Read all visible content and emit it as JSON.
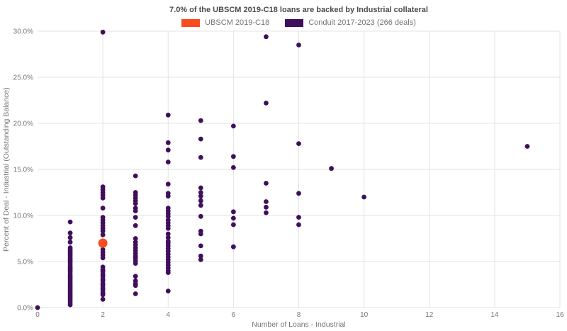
{
  "page": {
    "background": "#ffffff"
  },
  "chart_data": {
    "type": "scatter",
    "title": "7.0% of the UBSCM 2019-C18 loans are backed by Industrial collateral",
    "xlabel": "Number of Loans - Industrial",
    "ylabel": "Percent of Deal - Industrial (Outstanding Balance)",
    "xlim": [
      0,
      16
    ],
    "ylim": [
      0,
      30
    ],
    "x_ticks": [
      0,
      2,
      4,
      6,
      8,
      10,
      12,
      14,
      16
    ],
    "y_ticks": [
      0,
      5,
      10,
      15,
      20,
      25,
      30
    ],
    "y_tick_format": "one_decimal_percent",
    "grid": true,
    "legend_position": "top-center",
    "colors": {
      "grid": "#e3e3e3",
      "axis_text": "#757575",
      "title_text": "#4c4c4c",
      "background": "#ffffff"
    },
    "series": [
      {
        "name": "UBSCM 2019-C18",
        "color": "#f94c1f",
        "marker_radius": 6.5,
        "z": 2,
        "points": [
          [
            2,
            7.0
          ]
        ]
      },
      {
        "name": "Conduit 2017-2023 (266 deals)",
        "color": "#400f5c",
        "marker_radius": 3.4,
        "z": 1,
        "points": [
          [
            0,
            0.0
          ],
          [
            1,
            9.3
          ],
          [
            1,
            8.1
          ],
          [
            1,
            7.6
          ],
          [
            1,
            7.1
          ],
          [
            1,
            6.5
          ],
          [
            1,
            6.3
          ],
          [
            1,
            6.1
          ],
          [
            1,
            5.9
          ],
          [
            1,
            5.7
          ],
          [
            1,
            5.5
          ],
          [
            1,
            5.3
          ],
          [
            1,
            5.1
          ],
          [
            1,
            4.9
          ],
          [
            1,
            4.7
          ],
          [
            1,
            4.5
          ],
          [
            1,
            4.3
          ],
          [
            1,
            4.1
          ],
          [
            1,
            3.9
          ],
          [
            1,
            3.7
          ],
          [
            1,
            3.5
          ],
          [
            1,
            3.3
          ],
          [
            1,
            3.1
          ],
          [
            1,
            2.9
          ],
          [
            1,
            2.7
          ],
          [
            1,
            2.5
          ],
          [
            1,
            2.3
          ],
          [
            1,
            2.1
          ],
          [
            1,
            1.9
          ],
          [
            1,
            1.7
          ],
          [
            1,
            1.5
          ],
          [
            1,
            1.3
          ],
          [
            1,
            1.1
          ],
          [
            1,
            0.9
          ],
          [
            1,
            0.7
          ],
          [
            1,
            0.5
          ],
          [
            1,
            0.3
          ],
          [
            2,
            29.9
          ],
          [
            2,
            13.1
          ],
          [
            2,
            12.8
          ],
          [
            2,
            12.5
          ],
          [
            2,
            12.2
          ],
          [
            2,
            11.9
          ],
          [
            2,
            10.8
          ],
          [
            2,
            9.8
          ],
          [
            2,
            9.5
          ],
          [
            2,
            9.2
          ],
          [
            2,
            8.9
          ],
          [
            2,
            8.6
          ],
          [
            2,
            8.3
          ],
          [
            2,
            7.9
          ],
          [
            2,
            6.3
          ],
          [
            2,
            6.0
          ],
          [
            2,
            5.7
          ],
          [
            2,
            5.4
          ],
          [
            2,
            4.4
          ],
          [
            2,
            4.1
          ],
          [
            2,
            3.9
          ],
          [
            2,
            3.6
          ],
          [
            2,
            3.4
          ],
          [
            2,
            3.1
          ],
          [
            2,
            2.9
          ],
          [
            2,
            2.6
          ],
          [
            2,
            2.4
          ],
          [
            2,
            2.1
          ],
          [
            2,
            1.9
          ],
          [
            2,
            1.6
          ],
          [
            2,
            1.4
          ],
          [
            2,
            0.9
          ],
          [
            3,
            14.3
          ],
          [
            3,
            12.5
          ],
          [
            3,
            12.2
          ],
          [
            3,
            11.9
          ],
          [
            3,
            11.6
          ],
          [
            3,
            11.3
          ],
          [
            3,
            10.8
          ],
          [
            3,
            10.5
          ],
          [
            3,
            9.8
          ],
          [
            3,
            8.9
          ],
          [
            3,
            7.5
          ],
          [
            3,
            7.1
          ],
          [
            3,
            6.8
          ],
          [
            3,
            6.5
          ],
          [
            3,
            6.2
          ],
          [
            3,
            5.9
          ],
          [
            3,
            5.6
          ],
          [
            3,
            5.4
          ],
          [
            3,
            5.1
          ],
          [
            3,
            4.8
          ],
          [
            3,
            3.4
          ],
          [
            3,
            2.9
          ],
          [
            3,
            2.6
          ],
          [
            3,
            2.4
          ],
          [
            3,
            1.5
          ],
          [
            4,
            20.9
          ],
          [
            4,
            17.9
          ],
          [
            4,
            17.1
          ],
          [
            4,
            15.8
          ],
          [
            4,
            13.4
          ],
          [
            4,
            12.4
          ],
          [
            4,
            12.1
          ],
          [
            4,
            10.8
          ],
          [
            4,
            10.5
          ],
          [
            4,
            10.2
          ],
          [
            4,
            9.9
          ],
          [
            4,
            9.5
          ],
          [
            4,
            9.2
          ],
          [
            4,
            8.9
          ],
          [
            4,
            8.6
          ],
          [
            4,
            8.0
          ],
          [
            4,
            7.6
          ],
          [
            4,
            7.2
          ],
          [
            4,
            7.0
          ],
          [
            4,
            6.7
          ],
          [
            4,
            6.4
          ],
          [
            4,
            6.1
          ],
          [
            4,
            5.8
          ],
          [
            4,
            5.5
          ],
          [
            4,
            5.2
          ],
          [
            4,
            4.9
          ],
          [
            4,
            4.6
          ],
          [
            4,
            4.3
          ],
          [
            4,
            4.0
          ],
          [
            4,
            3.8
          ],
          [
            4,
            1.8
          ],
          [
            5,
            20.3
          ],
          [
            5,
            18.3
          ],
          [
            5,
            16.3
          ],
          [
            5,
            13.0
          ],
          [
            5,
            12.5
          ],
          [
            5,
            12.1
          ],
          [
            5,
            11.6
          ],
          [
            5,
            11.1
          ],
          [
            5,
            9.9
          ],
          [
            5,
            8.3
          ],
          [
            5,
            8.0
          ],
          [
            5,
            6.7
          ],
          [
            5,
            5.6
          ],
          [
            5,
            5.2
          ],
          [
            6,
            19.7
          ],
          [
            6,
            16.4
          ],
          [
            6,
            15.2
          ],
          [
            6,
            10.4
          ],
          [
            6,
            9.7
          ],
          [
            6,
            9.0
          ],
          [
            6,
            6.6
          ],
          [
            7,
            29.4
          ],
          [
            7,
            22.2
          ],
          [
            7,
            13.5
          ],
          [
            7,
            11.5
          ],
          [
            7,
            10.9
          ],
          [
            7,
            10.3
          ],
          [
            8,
            28.5
          ],
          [
            8,
            17.8
          ],
          [
            8,
            12.4
          ],
          [
            8,
            9.8
          ],
          [
            8,
            9.0
          ],
          [
            9,
            15.1
          ],
          [
            10,
            12.0
          ],
          [
            15,
            17.5
          ]
        ]
      }
    ]
  }
}
